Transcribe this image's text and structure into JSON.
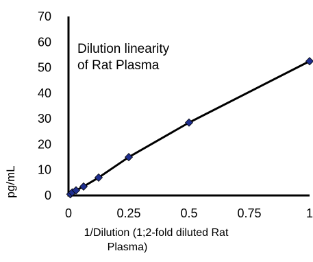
{
  "chart_data": {
    "type": "line",
    "title": "",
    "annotation_lines": [
      "Dilution linearity",
      "of Rat Plasma"
    ],
    "xlabel_lines": [
      "1/Dilution (1;2-fold diluted Rat",
      "Plasma)"
    ],
    "ylabel": "pg/mL",
    "xlim": [
      0,
      1
    ],
    "ylim": [
      0,
      70
    ],
    "x_ticks": [
      0,
      0.25,
      0.5,
      0.75,
      1
    ],
    "x_tick_labels": [
      "0",
      "0.25",
      "0.5",
      "0.75",
      "1"
    ],
    "y_ticks": [
      0,
      10,
      20,
      30,
      40,
      50,
      60,
      70
    ],
    "y_tick_labels": [
      "0",
      "10",
      "20",
      "30",
      "40",
      "50",
      "60",
      "70"
    ],
    "grid": false,
    "series": [
      {
        "x": [
          0.0078125,
          0.015625,
          0.03125,
          0.0625,
          0.125,
          0.25,
          0.5,
          1
        ],
        "y": [
          0.5,
          1.2,
          2.0,
          3.5,
          7.0,
          15.0,
          28.5,
          52.5
        ],
        "color": "#1f2f8f",
        "marker": "diamond"
      }
    ]
  }
}
